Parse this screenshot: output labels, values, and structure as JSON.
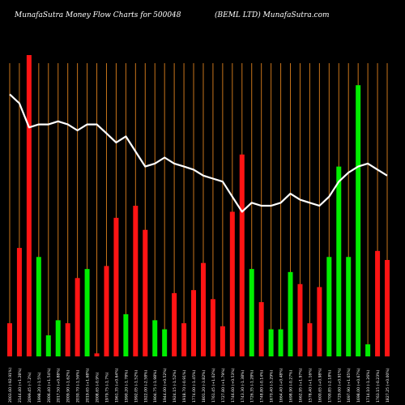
{
  "header": {
    "left": "MunafaSutra  Money Flow  Charts for 500048",
    "right": "(BEML  LTD) MunafaSutra.com"
  },
  "colors": {
    "background": "#000000",
    "grid": "#c8741b",
    "up": "#00ee00",
    "down": "#ff1414",
    "line": "#ffffff"
  },
  "chart_data": {
    "type": "bar",
    "title": "",
    "xlabel": "",
    "ylabel": "",
    "ylim": [
      0,
      100
    ],
    "grid": true,
    "bar_values": [
      11,
      36,
      100,
      33,
      7,
      12,
      11,
      26,
      29,
      1,
      30,
      46,
      14,
      50,
      42,
      12,
      9,
      21,
      11,
      22,
      31,
      19,
      10,
      48,
      67,
      29,
      18,
      9,
      9,
      28,
      24,
      11,
      23,
      33,
      63,
      33,
      90,
      4,
      35,
      32
    ],
    "bar_colors": [
      "red",
      "red",
      "red",
      "green",
      "green",
      "green",
      "red",
      "red",
      "green",
      "red",
      "red",
      "red",
      "green",
      "red",
      "red",
      "green",
      "green",
      "red",
      "red",
      "red",
      "red",
      "red",
      "red",
      "red",
      "red",
      "green",
      "red",
      "green",
      "green",
      "green",
      "red",
      "red",
      "red",
      "green",
      "green",
      "green",
      "green",
      "green",
      "red",
      "red"
    ],
    "line_values": [
      87,
      84,
      76,
      77,
      77,
      78,
      77,
      75,
      77,
      77,
      74,
      71,
      73,
      68,
      63,
      64,
      66,
      64,
      63,
      62,
      60,
      59,
      58,
      53,
      48,
      51,
      50,
      50,
      51,
      54,
      52,
      51,
      50,
      53,
      58,
      61,
      63,
      64,
      62,
      60
    ],
    "x_labels": [
      "2003.60 (-92.91%)",
      "2144.40 (+1.28%)",
      "2099.45 (-7.2%)",
      "1998.20 (-1.5%)",
      "2006.40 (+1.54%)",
      "2017.50 (+0.88%)",
      "2009.90 (-1.62%)",
      "2030.70 (-1.56%)",
      "2019.65 (+1.68%)",
      "2008.65 (-0.9%)",
      "1979.75 (-1.7%)",
      "1961.35 (+0.64%)",
      "1990.20 (-1.78%)",
      "1992.05 (-1.52%)",
      "1922.00 (-2.58%)",
      "1904.75 (-1.98%)",
      "1944.00 (+0.52%)",
      "1924.15 (-1.52%)",
      "1918.70 (-0.91%)",
      "1774.00 (-1.45%)",
      "1801.20 (-3.82%)",
      "1761.45 (+1.02%)",
      "1727.80 (+1.79%)",
      "1746.60 (+0.53%)",
      "1743.30 (-1.38%)",
      "1726.35 (-1.28%)",
      "1748.80 (-0.14%)",
      "1670.40 (-5.29%)",
      "1664.40 (+0.48%)",
      "1698.90 (-0.27%)",
      "1662.95 (+1.97%)",
      "1578.40 (+1.16%)",
      "1600.65 (+0.98%)",
      "1700.85 (-2.18%)",
      "1729.60 (+0.91%)",
      "1697.90 (+1.65%)",
      "1698.00 (+0.67%)",
      "1714.10 (-1.26%)",
      "1763.15 (-0.23%)",
      "1827.25 (+0.00%)"
    ]
  }
}
